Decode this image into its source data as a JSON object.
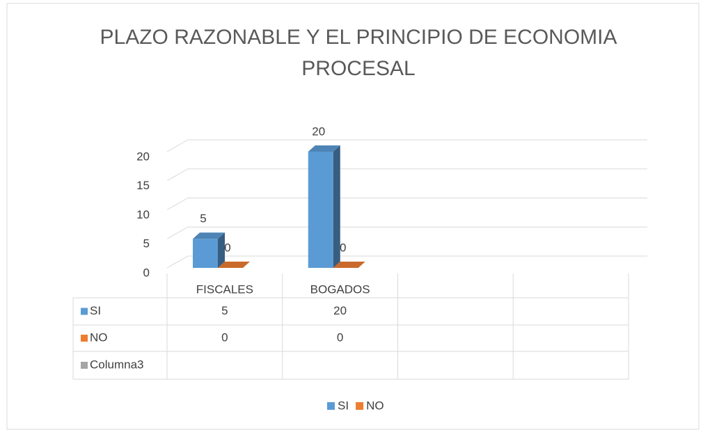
{
  "chart_data": {
    "type": "bar3d",
    "title": "PLAZO RAZONABLE Y EL PRINCIPIO DE ECONOMIA",
    "subtitle": "PROCESAL",
    "categories": [
      "FISCALES",
      "BOGADOS",
      null,
      null
    ],
    "series": [
      {
        "name": "SI",
        "color": "#5b9bd5",
        "values": [
          5,
          20,
          null,
          null
        ]
      },
      {
        "name": "NO",
        "color": "#ed7d31",
        "values": [
          0,
          0,
          null,
          null
        ]
      },
      {
        "name": "Columna3",
        "color": "#a5a5a5",
        "values": [
          null,
          null,
          null,
          null
        ]
      }
    ],
    "ylim": [
      0,
      20
    ],
    "yticks": [
      0,
      5,
      10,
      15,
      20
    ],
    "grid": true,
    "legend": "bottom",
    "data_table": true
  }
}
